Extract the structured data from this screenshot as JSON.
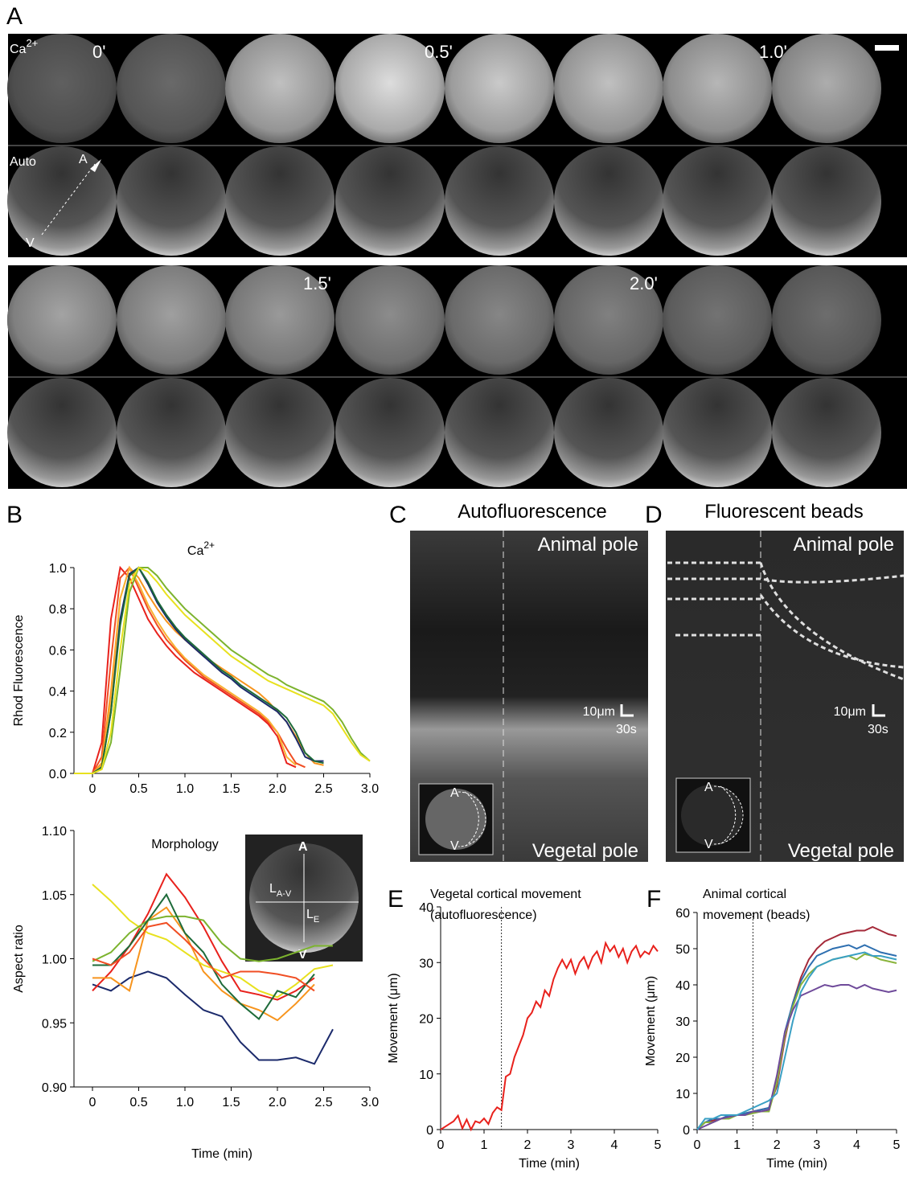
{
  "figure": {
    "panel_labels": [
      "A",
      "B",
      "C",
      "D",
      "E",
      "F"
    ],
    "a": {
      "ca_label": {
        "base": "Ca",
        "sup": "2+"
      },
      "auto_label": "Auto",
      "times": [
        "0'",
        "0.5'",
        "1.0'",
        "1.5'",
        "2.0'"
      ],
      "axis_a": "A",
      "axis_v": "V"
    },
    "b_inset": {
      "a": "A",
      "v": "V",
      "lav": {
        "base": "L",
        "sub": "A-V"
      },
      "le": {
        "base": "L",
        "sub": "E"
      }
    },
    "c": {
      "title": "Autofluorescence",
      "animal": "Animal pole",
      "vegetal": "Vegetal pole",
      "scale_um": "10μm",
      "scale_s": "30s",
      "inset_a": "A",
      "inset_v": "V"
    },
    "d": {
      "title": "Fluorescent beads",
      "animal": "Animal pole",
      "vegetal": "Vegetal pole",
      "scale_um": "10μm",
      "scale_s": "30s",
      "inset_a": "A",
      "inset_v": "V"
    }
  },
  "chart_data": [
    {
      "type": "line",
      "title": {
        "base": "Ca",
        "sup": "2+"
      },
      "y_label": "Rhod Fluorescence",
      "x": [
        -0.2,
        -0.1,
        0,
        0.1,
        0.2,
        0.3,
        0.4,
        0.5,
        0.6,
        0.7,
        0.8,
        0.9,
        1.0,
        1.1,
        1.2,
        1.3,
        1.4,
        1.5,
        1.6,
        1.7,
        1.8,
        1.9,
        2.0,
        2.1,
        2.2,
        2.3,
        2.4,
        2.5,
        2.6,
        2.7,
        2.8,
        2.9,
        3.0
      ],
      "xlim": [
        -0.2,
        3.0
      ],
      "ylim": [
        0,
        1.0
      ],
      "xticks": [
        0,
        0.5,
        {
          "value": 1,
          "label": "1.0"
        },
        1.5,
        {
          "value": 2,
          "label": "2.0"
        },
        2.5,
        {
          "value": 3,
          "label": "3.0"
        }
      ],
      "yticks": [
        {
          "value": 0,
          "label": "0.0"
        },
        0.2,
        0.4,
        0.6,
        0.8,
        {
          "value": 1,
          "label": "1.0"
        }
      ],
      "series": [
        {
          "color": "#e8211c",
          "values": [
            0,
            0,
            0,
            0.15,
            0.75,
            1.0,
            0.95,
            0.85,
            0.75,
            0.68,
            0.62,
            0.57,
            0.53,
            0.49,
            0.46,
            0.43,
            0.4,
            0.37,
            0.34,
            0.31,
            0.28,
            0.24,
            0.18,
            0.05,
            0.03,
            null,
            null,
            null,
            null,
            null,
            null,
            null,
            null
          ]
        },
        {
          "color": "#f04e23",
          "values": [
            0,
            0,
            0,
            0.08,
            0.55,
            0.95,
            1.0,
            0.9,
            0.8,
            0.72,
            0.65,
            0.6,
            0.55,
            0.51,
            0.47,
            0.44,
            0.41,
            0.38,
            0.35,
            0.32,
            0.29,
            0.25,
            0.2,
            0.12,
            0.05,
            0.03,
            null,
            null,
            null,
            null,
            null,
            null,
            null
          ]
        },
        {
          "color": "#f7941d",
          "values": [
            0,
            0,
            0,
            0.05,
            0.4,
            0.85,
            1.0,
            0.95,
            0.87,
            0.8,
            0.74,
            0.69,
            0.65,
            0.61,
            0.57,
            0.54,
            0.51,
            0.48,
            0.45,
            0.42,
            0.39,
            0.35,
            0.3,
            0.25,
            0.18,
            0.1,
            0.05,
            0.04,
            null,
            null,
            null,
            null,
            null
          ]
        },
        {
          "color": "#f9b233",
          "values": [
            0,
            0,
            0,
            0.04,
            0.35,
            0.85,
            1.0,
            0.92,
            0.82,
            0.74,
            0.67,
            0.61,
            0.56,
            0.52,
            0.48,
            0.45,
            0.42,
            0.39,
            0.36,
            0.33,
            0.3,
            0.26,
            0.2,
            0.08,
            0.04,
            null,
            null,
            null,
            null,
            null,
            null,
            null,
            null
          ]
        },
        {
          "color": "#1b2a6b",
          "values": [
            0,
            0,
            0,
            0.03,
            0.3,
            0.75,
            0.97,
            1.0,
            0.92,
            0.83,
            0.76,
            0.7,
            0.65,
            0.61,
            0.57,
            0.53,
            0.49,
            0.46,
            0.42,
            0.39,
            0.36,
            0.33,
            0.3,
            0.25,
            0.17,
            0.08,
            0.06,
            0.06,
            null,
            null,
            null,
            null,
            null
          ]
        },
        {
          "color": "#1e6b3a",
          "values": [
            0,
            0,
            0,
            0.03,
            0.3,
            0.72,
            0.96,
            1.0,
            0.93,
            0.84,
            0.77,
            0.71,
            0.66,
            0.62,
            0.58,
            0.54,
            0.5,
            0.47,
            0.43,
            0.4,
            0.37,
            0.34,
            0.31,
            0.27,
            0.2,
            0.1,
            0.06,
            0.05,
            null,
            null,
            null,
            null,
            null
          ]
        },
        {
          "color": "#7cb32e",
          "values": [
            0,
            0,
            0,
            0.02,
            0.15,
            0.5,
            0.88,
            1.0,
            1.0,
            0.96,
            0.9,
            0.85,
            0.8,
            0.76,
            0.72,
            0.68,
            0.64,
            0.6,
            0.57,
            0.54,
            0.51,
            0.48,
            0.46,
            0.43,
            0.41,
            0.39,
            0.37,
            0.35,
            0.31,
            0.25,
            0.17,
            0.1,
            0.06
          ]
        },
        {
          "color": "#e8e11e",
          "values": [
            0,
            0,
            0,
            0.02,
            0.2,
            0.6,
            0.92,
            1.0,
            0.98,
            0.93,
            0.87,
            0.82,
            0.77,
            0.73,
            0.69,
            0.65,
            0.61,
            0.57,
            0.54,
            0.51,
            0.48,
            0.45,
            0.43,
            0.41,
            0.39,
            0.37,
            0.35,
            0.33,
            0.29,
            0.22,
            0.15,
            0.09,
            0.06
          ]
        }
      ]
    },
    {
      "type": "line",
      "title": "Morphology",
      "y_label": "Aspect ratio",
      "x_label": "Time (min)",
      "x": [
        0,
        0.2,
        0.4,
        0.6,
        0.8,
        1.0,
        1.2,
        1.4,
        1.6,
        1.8,
        2.0,
        2.2,
        2.4,
        2.6
      ],
      "xlim": [
        -0.2,
        3.0
      ],
      "ylim": [
        0.9,
        1.1
      ],
      "xticks": [
        0,
        0.5,
        {
          "value": 1,
          "label": "1.0"
        },
        1.5,
        {
          "value": 2,
          "label": "2.0"
        },
        2.5,
        {
          "value": 3,
          "label": "3.0"
        }
      ],
      "yticks": [
        {
          "value": 0.9,
          "label": "0.90"
        },
        0.95,
        {
          "value": 1,
          "label": "1.00"
        },
        1.05,
        {
          "value": 1.1,
          "label": "1.10"
        }
      ],
      "series": [
        {
          "color": "#1b2a6b",
          "values": [
            0.98,
            0.975,
            0.985,
            0.99,
            0.985,
            0.972,
            0.96,
            0.955,
            0.935,
            0.921,
            0.921,
            0.923,
            0.918,
            0.945
          ]
        },
        {
          "color": "#e8211c",
          "values": [
            0.975,
            0.99,
            1.01,
            1.035,
            1.066,
            1.048,
            1.025,
            0.998,
            0.975,
            0.972,
            0.968,
            0.975,
            0.985,
            null
          ]
        },
        {
          "color": "#f7941d",
          "values": [
            0.985,
            0.985,
            0.975,
            1.03,
            1.04,
            1.02,
            0.99,
            0.975,
            0.965,
            0.96,
            0.952,
            0.965,
            0.98,
            null
          ]
        },
        {
          "color": "#e8e11e",
          "values": [
            1.058,
            1.045,
            1.03,
            1.02,
            1.015,
            1.005,
            0.995,
            0.99,
            0.985,
            0.975,
            0.97,
            0.98,
            0.992,
            0.995
          ]
        },
        {
          "color": "#7cb32e",
          "values": [
            0.998,
            1.005,
            1.02,
            1.03,
            1.033,
            1.033,
            1.03,
            1.012,
            1.0,
            0.998,
            1.0,
            1.005,
            1.01,
            1.01
          ]
        },
        {
          "color": "#1e6b3a",
          "values": [
            0.995,
            0.995,
            1.01,
            1.03,
            1.05,
            1.02,
            1.005,
            0.98,
            0.965,
            0.953,
            0.975,
            0.97,
            0.988,
            null
          ]
        },
        {
          "color": "#f04e23",
          "values": [
            1.0,
            0.995,
            1.005,
            1.025,
            1.028,
            1.015,
            1.0,
            0.985,
            0.99,
            0.99,
            0.988,
            0.985,
            0.975,
            null
          ]
        }
      ]
    },
    {
      "type": "line",
      "title": [
        "Vegetal cortical movement",
        "(autofluorescence)"
      ],
      "y_label": "Movement (μm)",
      "x_label": "Time (min)",
      "x": [
        0,
        0.1,
        0.2,
        0.3,
        0.4,
        0.5,
        0.6,
        0.7,
        0.8,
        0.9,
        1.0,
        1.1,
        1.2,
        1.3,
        1.4,
        1.5,
        1.6,
        1.7,
        1.8,
        1.9,
        2.0,
        2.1,
        2.2,
        2.3,
        2.4,
        2.5,
        2.6,
        2.7,
        2.8,
        2.9,
        3.0,
        3.1,
        3.2,
        3.3,
        3.4,
        3.5,
        3.6,
        3.7,
        3.8,
        3.9,
        4.0,
        4.1,
        4.2,
        4.3,
        4.4,
        4.5,
        4.6,
        4.7,
        4.8,
        4.9,
        5.0
      ],
      "xlim": [
        0,
        5
      ],
      "ylim": [
        0,
        40
      ],
      "xticks": [
        0,
        1,
        2,
        3,
        4,
        5
      ],
      "yticks": [
        0,
        10,
        20,
        30,
        40
      ],
      "vline": 1.4,
      "series": [
        {
          "color": "#e8211c",
          "values": [
            0,
            0.5,
            1,
            1.5,
            2.5,
            0.2,
            1.8,
            0,
            1.5,
            1.2,
            2,
            1,
            3,
            4,
            3.5,
            9.5,
            10,
            13,
            15,
            17,
            20,
            21,
            23,
            22,
            25,
            24,
            27,
            29,
            30.5,
            29,
            30.5,
            28,
            30,
            31,
            29,
            31,
            32,
            30,
            33.5,
            32,
            33,
            31,
            32.5,
            30,
            32,
            33,
            31,
            32,
            31.5,
            33,
            32
          ]
        }
      ]
    },
    {
      "type": "line",
      "title": [
        "Animal cortical",
        "movement (beads)"
      ],
      "y_label": "Movement (μm)",
      "x_label": "Time (min)",
      "x": [
        0,
        0.2,
        0.4,
        0.6,
        0.8,
        1.0,
        1.2,
        1.4,
        1.6,
        1.8,
        2.0,
        2.2,
        2.4,
        2.6,
        2.8,
        3.0,
        3.2,
        3.4,
        3.6,
        3.8,
        4.0,
        4.2,
        4.4,
        4.6,
        4.8,
        5.0
      ],
      "xlim": [
        0,
        5
      ],
      "ylim": [
        0,
        60
      ],
      "xticks": [
        0,
        1,
        2,
        3,
        4,
        5
      ],
      "yticks": [
        0,
        10,
        20,
        30,
        40,
        50,
        60
      ],
      "vline": 1.4,
      "series": [
        {
          "color": "#a52a3a",
          "values": [
            0,
            2,
            2.5,
            3,
            3.5,
            4,
            4.5,
            5,
            5.5,
            6,
            12,
            25,
            35,
            42,
            47,
            50,
            52,
            53,
            54,
            54.5,
            55,
            55,
            56,
            55,
            54,
            53.5
          ]
        },
        {
          "color": "#2e6fb0",
          "values": [
            0,
            2,
            3,
            3,
            4,
            4,
            4.5,
            5,
            5.5,
            6,
            14,
            27,
            35,
            41,
            45,
            48,
            49,
            50,
            50.5,
            51,
            50,
            51,
            50,
            49,
            48.5,
            48
          ]
        },
        {
          "color": "#8ab43c",
          "values": [
            0,
            2,
            2,
            3,
            3,
            4,
            4,
            4.5,
            5,
            5,
            13,
            26,
            34,
            40,
            43,
            45,
            46,
            47,
            47.5,
            48,
            47,
            48.5,
            48,
            47,
            46.5,
            46
          ]
        },
        {
          "color": "#6f4a9a",
          "values": [
            0,
            1,
            2,
            3,
            3.5,
            4,
            4,
            5,
            5,
            5.5,
            15,
            27,
            33,
            37,
            38,
            39,
            40,
            39.5,
            40,
            40,
            39,
            40,
            39,
            38.5,
            38,
            38.5
          ]
        },
        {
          "color": "#3aa0c4",
          "values": [
            0,
            3,
            3,
            4,
            4,
            4,
            5,
            6,
            7,
            8,
            10,
            20,
            30,
            38,
            42,
            45,
            46,
            47,
            47.5,
            48,
            48.5,
            49,
            48,
            48,
            47.5,
            47
          ]
        }
      ]
    }
  ]
}
